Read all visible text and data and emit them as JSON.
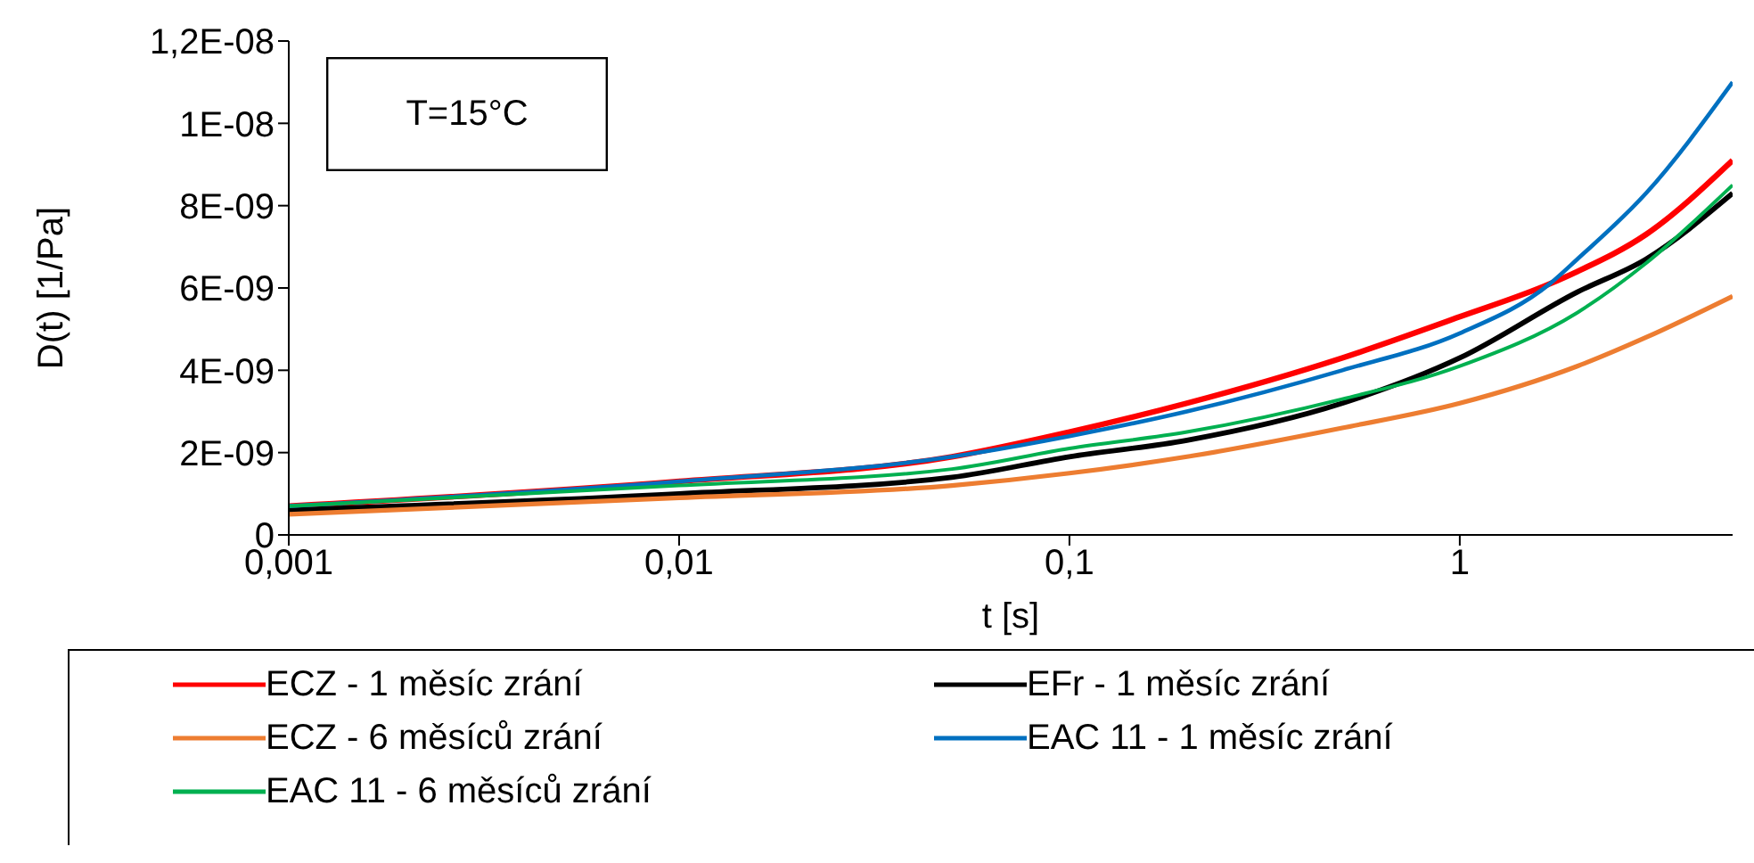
{
  "chart_data": {
    "type": "line",
    "xlabel": "t [s]",
    "ylabel": "D(t) [1/Pa]",
    "annotations": [
      "T=15°C"
    ],
    "log": "x",
    "grid": false,
    "legend": "bottom",
    "marker": "none",
    "line_style": "solid",
    "xlim": [
      0.001,
      5
    ],
    "xticks": [
      {
        "value": 0.001,
        "label": "0,001"
      },
      {
        "value": 0.01,
        "label": "0,01"
      },
      {
        "value": 0.1,
        "label": "0,1"
      },
      {
        "value": 1,
        "label": "1"
      }
    ],
    "ylim": [
      0,
      1.2e-08
    ],
    "yticks": [
      0,
      {
        "value": 2e-09,
        "label": "2E-09"
      },
      {
        "value": 4e-09,
        "label": "4E-09"
      },
      {
        "value": 6e-09,
        "label": "6E-09"
      },
      {
        "value": 8e-09,
        "label": "8E-09"
      },
      {
        "value": 1e-08,
        "label": "1E-08"
      },
      {
        "value": 1.2e-08,
        "label": "1,2E-08"
      }
    ],
    "series": [
      {
        "name": "ECZ - 1 měsíc zrání",
        "color": "#ff0000",
        "x": [
          0.001,
          0.01,
          0.05,
          0.1,
          0.2,
          0.5,
          1,
          1.7,
          2,
          3,
          5
        ],
        "values": [
          7e-10,
          1.3e-09,
          1.9e-09,
          2.5e-09,
          3.2e-09,
          4.3e-09,
          5.3e-09,
          6.1e-09,
          6.4e-09,
          7.3e-09,
          9.1e-09
        ]
      },
      {
        "name": "EFr - 1 měsíc zrání",
        "color": "#000000",
        "x": [
          0.001,
          0.01,
          0.05,
          0.1,
          0.2,
          0.5,
          1,
          2,
          3,
          5
        ],
        "values": [
          6e-10,
          1e-09,
          1.4e-09,
          1.9e-09,
          2.3e-09,
          3.2e-09,
          4.3e-09,
          5.9e-09,
          6.7e-09,
          8.3e-09
        ]
      },
      {
        "name": "ECZ - 6 měsíců zrání",
        "color": "#ed7d31",
        "x": [
          0.001,
          0.01,
          0.05,
          0.1,
          0.2,
          0.5,
          1,
          2,
          3,
          5
        ],
        "values": [
          5e-10,
          9e-10,
          1.2e-09,
          1.5e-09,
          1.9e-09,
          2.6e-09,
          3.2e-09,
          4.1e-09,
          4.8e-09,
          5.8e-09
        ]
      },
      {
        "name": "EAC 11 - 1 měsíc zrání",
        "color": "#0070c0",
        "x": [
          0.001,
          0.01,
          0.05,
          0.1,
          0.2,
          0.5,
          1,
          1.7,
          2,
          3,
          5
        ],
        "values": [
          7e-10,
          1.3e-09,
          1.9e-09,
          2.4e-09,
          3e-09,
          4e-09,
          4.9e-09,
          6.1e-09,
          6.7e-09,
          8.3e-09,
          1.1e-08
        ]
      },
      {
        "name": "EAC 11 - 6 měsíců zrání",
        "color": "#00b050",
        "x": [
          0.001,
          0.01,
          0.05,
          0.1,
          0.2,
          0.5,
          1,
          2,
          3,
          5
        ],
        "values": [
          7e-10,
          1.2e-09,
          1.6e-09,
          2.1e-09,
          2.5e-09,
          3.3e-09,
          4.1e-09,
          5.4e-09,
          6.6e-09,
          8.5e-09
        ]
      }
    ]
  }
}
